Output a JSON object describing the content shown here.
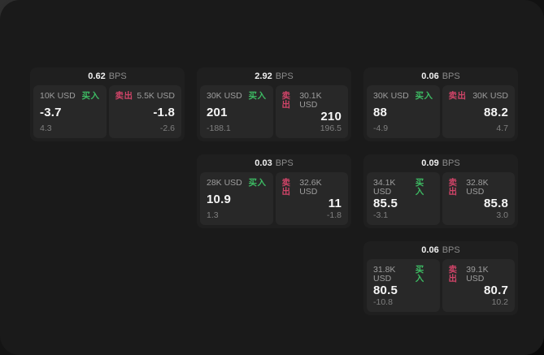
{
  "page": {
    "bps_unit": "BPS",
    "buy_label": "买入",
    "sell_label": "卖出"
  },
  "colors": {
    "buy_green": "#3dbb63",
    "sell_red": "#cf4468",
    "canvas_bg": "#1a1a1a",
    "card_bg": "#1f1f1f",
    "panel_bg": "#282828"
  },
  "cards": [
    {
      "bps": "0.62",
      "buy": {
        "size": "10K USD",
        "price": "-3.7",
        "change": "4.3"
      },
      "sell": {
        "size": "5.5K USD",
        "price": "-1.8",
        "change": "-2.6"
      }
    },
    {
      "bps": "2.92",
      "buy": {
        "size": "30K USD",
        "price": "201",
        "change": "-188.1"
      },
      "sell": {
        "size": "30.1K USD",
        "price": "210",
        "change": "196.5"
      }
    },
    {
      "bps": "0.06",
      "buy": {
        "size": "30K USD",
        "price": "88",
        "change": "-4.9"
      },
      "sell": {
        "size": "30K USD",
        "price": "88.2",
        "change": "4.7"
      }
    },
    {
      "bps": "0.03",
      "buy": {
        "size": "28K USD",
        "price": "10.9",
        "change": "1.3"
      },
      "sell": {
        "size": "32.6K USD",
        "price": "11",
        "change": "-1.8"
      }
    },
    {
      "bps": "0.09",
      "buy": {
        "size": "34.1K USD",
        "price": "85.5",
        "change": "-3.1"
      },
      "sell": {
        "size": "32.8K USD",
        "price": "85.8",
        "change": "3.0"
      }
    },
    {
      "bps": "0.06",
      "buy": {
        "size": "31.8K USD",
        "price": "80.5",
        "change": "-10.8"
      },
      "sell": {
        "size": "39.1K USD",
        "price": "80.7",
        "change": "10.2"
      }
    }
  ]
}
